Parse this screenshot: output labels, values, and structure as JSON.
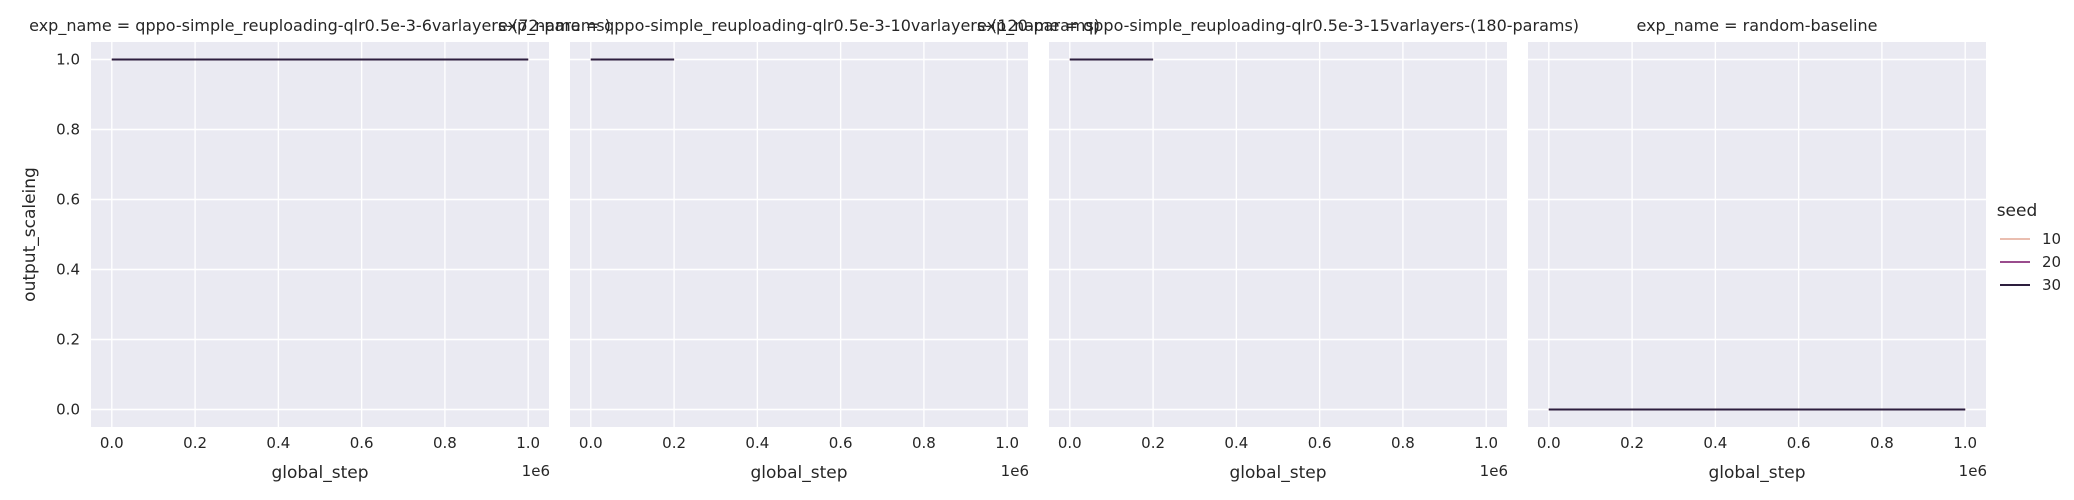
{
  "chart_data": {
    "type": "line",
    "facet_by": "exp_name",
    "x": [
      0,
      1000000
    ],
    "xlabel": "global_step",
    "ylabel": "output_scaleing",
    "x_offset_label": "1e6",
    "xlim": [
      -50000,
      1050000
    ],
    "ylim": [
      -0.05,
      1.05
    ],
    "xticks": [
      0,
      200000,
      400000,
      600000,
      800000,
      1000000
    ],
    "xtick_labels": [
      "0.0",
      "0.2",
      "0.4",
      "0.6",
      "0.8",
      "1.0"
    ],
    "yticks": [
      0.0,
      0.2,
      0.4,
      0.6,
      0.8,
      1.0
    ],
    "ytick_labels": [
      "0.0",
      "0.2",
      "0.4",
      "0.6",
      "0.8",
      "1.0"
    ],
    "grid": true,
    "legend": {
      "title": "seed",
      "placement": "center-right",
      "entries": [
        {
          "label": "10",
          "color": "#eabeb0"
        },
        {
          "label": "20",
          "color": "#9a4c8d"
        },
        {
          "label": "30",
          "color": "#2d1e3e"
        }
      ]
    },
    "panels": [
      {
        "title": "exp_name = qppo-simple_reuploading-qlr0.5e-3-6varlayers-(72-params)",
        "series": [
          {
            "name": "10",
            "points": [
              [
                0,
                1.0
              ],
              [
                1000000,
                1.0
              ]
            ]
          },
          {
            "name": "20",
            "points": [
              [
                0,
                1.0
              ],
              [
                1000000,
                1.0
              ]
            ]
          },
          {
            "name": "30",
            "points": [
              [
                0,
                1.0
              ],
              [
                1000000,
                1.0
              ]
            ]
          }
        ]
      },
      {
        "title": "exp_name = qppo-simple_reuploading-qlr0.5e-3-10varlayers-(120-params)",
        "series": [
          {
            "name": "10",
            "points": [
              [
                0,
                1.0
              ],
              [
                200000,
                1.0
              ]
            ]
          },
          {
            "name": "20",
            "points": [
              [
                0,
                1.0
              ],
              [
                200000,
                1.0
              ]
            ]
          },
          {
            "name": "30",
            "points": [
              [
                0,
                1.0
              ],
              [
                200000,
                1.0
              ]
            ]
          }
        ]
      },
      {
        "title": "exp_name = qppo-simple_reuploading-qlr0.5e-3-15varlayers-(180-params)",
        "series": [
          {
            "name": "10",
            "points": [
              [
                0,
                1.0
              ],
              [
                200000,
                1.0
              ]
            ]
          },
          {
            "name": "20",
            "points": [
              [
                0,
                1.0
              ],
              [
                200000,
                1.0
              ]
            ]
          },
          {
            "name": "30",
            "points": [
              [
                0,
                1.0
              ],
              [
                200000,
                1.0
              ]
            ]
          }
        ]
      },
      {
        "title": "exp_name = random-baseline",
        "series": [
          {
            "name": "10",
            "points": [
              [
                0,
                0.0
              ],
              [
                1000000,
                0.0
              ]
            ]
          },
          {
            "name": "20",
            "points": [
              [
                0,
                0.0
              ],
              [
                1000000,
                0.0
              ]
            ]
          },
          {
            "name": "30",
            "points": [
              [
                0,
                0.0
              ],
              [
                1000000,
                0.0
              ]
            ]
          }
        ]
      }
    ],
    "colors": {
      "plot_background": "#eaeaf2",
      "grid": "#ffffff",
      "text": "#262626"
    }
  }
}
